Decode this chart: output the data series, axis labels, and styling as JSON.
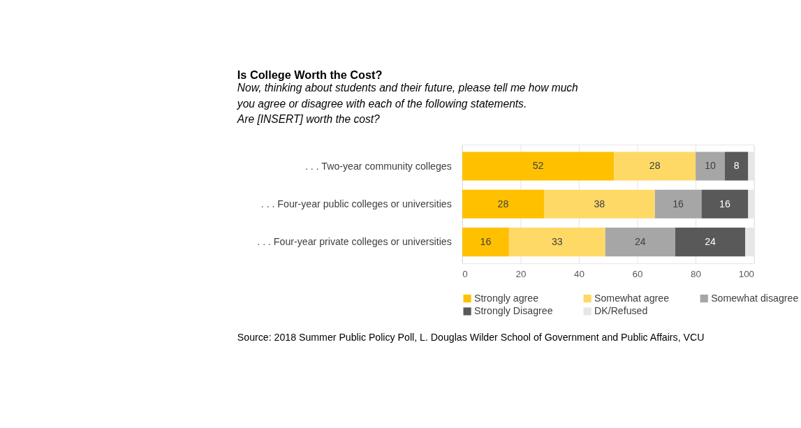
{
  "chart_data": {
    "type": "bar",
    "orientation": "horizontal",
    "stacked": true,
    "title": "Is College Worth the Cost?",
    "subtitle": "Now, thinking about students and their future, please tell me how much\nyou agree or disagree with each of the following statements.\nAre [INSERT] worth the cost?",
    "categories": [
      ". . . Two-year community colleges",
      ". . . Four-year public colleges or universities",
      ". . . Four-year private colleges or universities"
    ],
    "series": [
      {
        "name": "Strongly agree",
        "color": "#ffc000",
        "values": [
          52,
          28,
          16
        ],
        "value_labels": [
          "52",
          "28",
          "16"
        ]
      },
      {
        "name": "Somewhat agree",
        "color": "#ffd966",
        "values": [
          28,
          38,
          33
        ],
        "value_labels": [
          "28",
          "38",
          "33"
        ]
      },
      {
        "name": "Somewhat disagree",
        "color": "#a6a6a6",
        "values": [
          10,
          16,
          24
        ],
        "value_labels": [
          "10",
          "16",
          "24"
        ]
      },
      {
        "name": "Strongly Disagree",
        "color": "#595959",
        "values": [
          8,
          16,
          24
        ],
        "value_labels": [
          "8",
          "16",
          "24"
        ]
      },
      {
        "name": "DK/Refused",
        "color": "#e7e6e6",
        "values": [
          2,
          2,
          3
        ],
        "value_labels": [
          null,
          null,
          null
        ]
      }
    ],
    "xlim": [
      0,
      100
    ],
    "xticks": [
      0,
      20,
      40,
      60,
      80,
      100
    ],
    "grid": "x",
    "legend": "bottom",
    "annotations": [
      "Source: 2018 Summer Public Policy Poll, L. Douglas Wilder School of Government and Public Affairs, VCU"
    ]
  }
}
